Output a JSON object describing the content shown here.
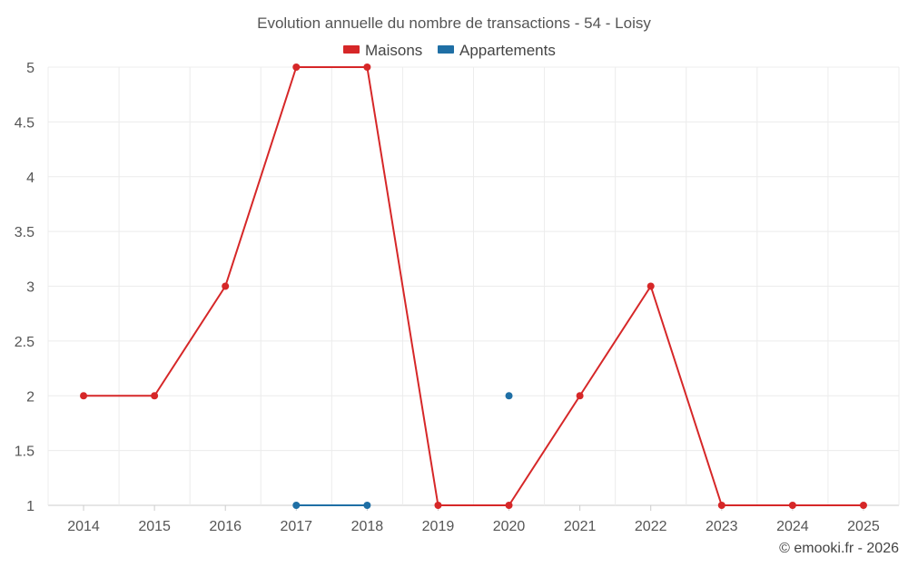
{
  "chart_data": {
    "type": "line",
    "title": "Evolution annuelle du nombre de transactions - 54 - Loisy",
    "categories": [
      "2014",
      "2015",
      "2016",
      "2017",
      "2018",
      "2019",
      "2020",
      "2021",
      "2022",
      "2023",
      "2024",
      "2025"
    ],
    "y_ticks": [
      "1",
      "1.5",
      "2",
      "2.5",
      "3",
      "3.5",
      "4",
      "4.5",
      "5"
    ],
    "ylim": [
      1,
      5
    ],
    "grid": true,
    "legend_position": "top-center",
    "series": [
      {
        "name": "Maisons",
        "color": "#d62728",
        "values": [
          2,
          2,
          3,
          5,
          5,
          1,
          1,
          2,
          3,
          1,
          1,
          1
        ]
      },
      {
        "name": "Appartements",
        "color": "#1f6fa5",
        "values": [
          null,
          null,
          null,
          1,
          1,
          null,
          2,
          null,
          null,
          null,
          null,
          null
        ]
      }
    ],
    "credit": "© emooki.fr - 2026"
  }
}
